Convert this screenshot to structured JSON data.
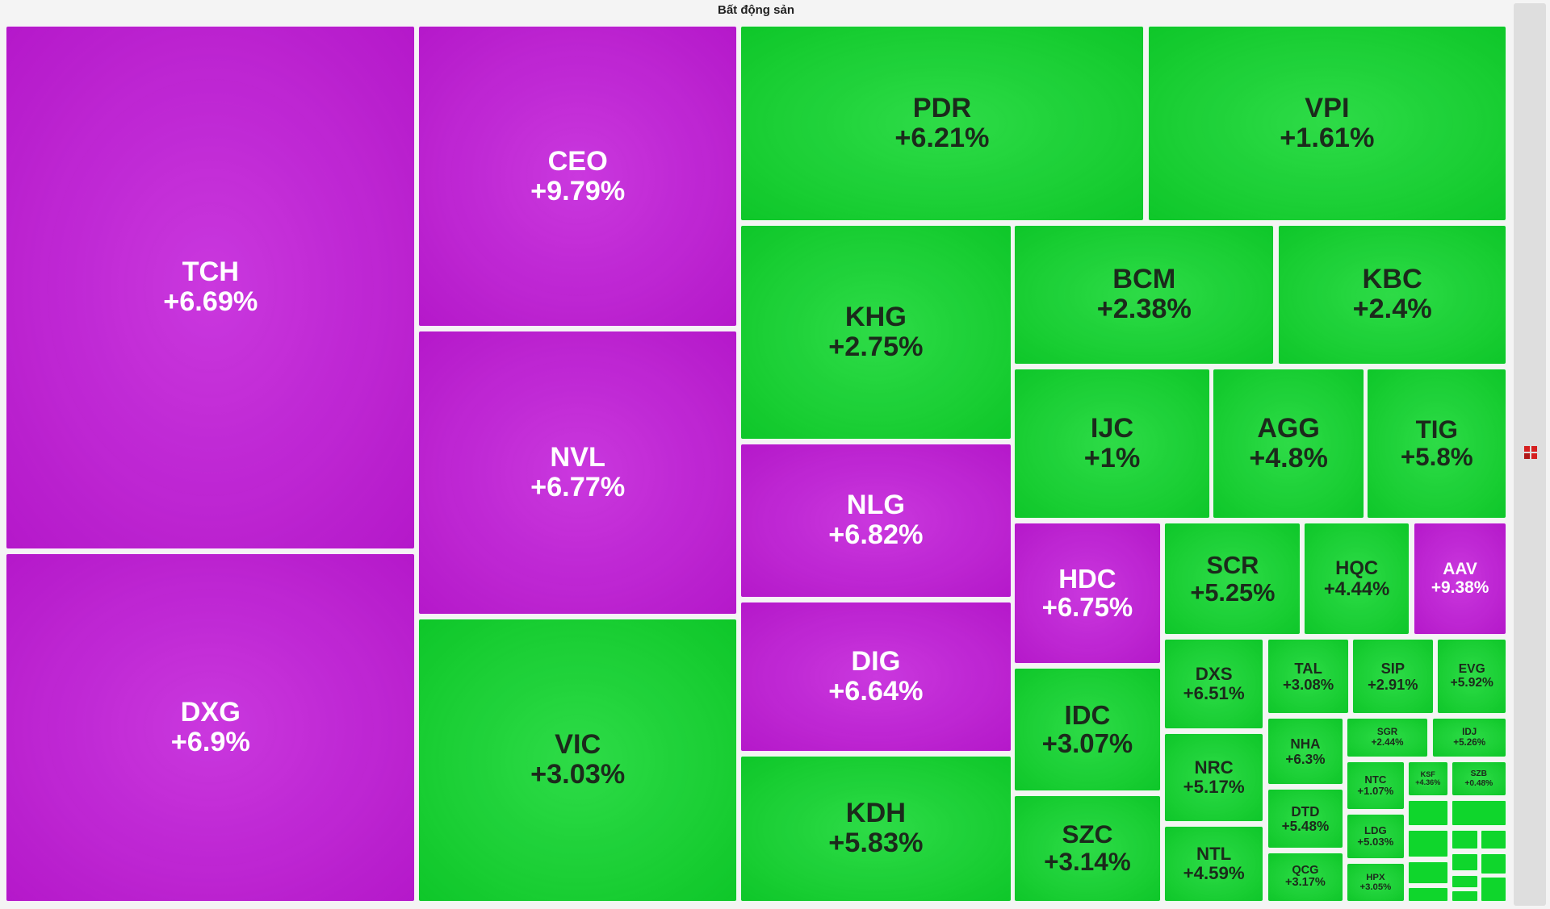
{
  "title": "Bất động sản",
  "tiles": [
    {
      "ticker": "TCH",
      "change": "+6.69%",
      "color": "#c21ad9"
    },
    {
      "ticker": "DXG",
      "change": "+6.9%",
      "color": "#c21ad9"
    },
    {
      "ticker": "CEO",
      "change": "+9.79%",
      "color": "#c21ad9"
    },
    {
      "ticker": "NVL",
      "change": "+6.77%",
      "color": "#c21ad9"
    },
    {
      "ticker": "VIC",
      "change": "+3.03%",
      "color": "#0fd62c"
    },
    {
      "ticker": "PDR",
      "change": "+6.21%",
      "color": "#0fd62c"
    },
    {
      "ticker": "VPI",
      "change": "+1.61%",
      "color": "#0fd62c"
    },
    {
      "ticker": "KHG",
      "change": "+2.75%",
      "color": "#0fd62c"
    },
    {
      "ticker": "NLG",
      "change": "+6.82%",
      "color": "#c21ad9"
    },
    {
      "ticker": "DIG",
      "change": "+6.64%",
      "color": "#c21ad9"
    },
    {
      "ticker": "KDH",
      "change": "+5.83%",
      "color": "#0fd62c"
    },
    {
      "ticker": "BCM",
      "change": "+2.38%",
      "color": "#0fd62c"
    },
    {
      "ticker": "KBC",
      "change": "+2.4%",
      "color": "#0fd62c"
    },
    {
      "ticker": "IJC",
      "change": "+1%",
      "color": "#0fd62c"
    },
    {
      "ticker": "AGG",
      "change": "+4.8%",
      "color": "#0fd62c"
    },
    {
      "ticker": "TIG",
      "change": "+5.8%",
      "color": "#0fd62c"
    },
    {
      "ticker": "HDC",
      "change": "+6.75%",
      "color": "#c21ad9"
    },
    {
      "ticker": "IDC",
      "change": "+3.07%",
      "color": "#0fd62c"
    },
    {
      "ticker": "SZC",
      "change": "+3.14%",
      "color": "#0fd62c"
    },
    {
      "ticker": "SCR",
      "change": "+5.25%",
      "color": "#0fd62c"
    },
    {
      "ticker": "HQC",
      "change": "+4.44%",
      "color": "#0fd62c"
    },
    {
      "ticker": "AAV",
      "change": "+9.38%",
      "color": "#c21ad9"
    },
    {
      "ticker": "DXS",
      "change": "+6.51%",
      "color": "#0fd62c"
    },
    {
      "ticker": "NRC",
      "change": "+5.17%",
      "color": "#0fd62c"
    },
    {
      "ticker": "NTL",
      "change": "+4.59%",
      "color": "#0fd62c"
    },
    {
      "ticker": "TAL",
      "change": "+3.08%",
      "color": "#0fd62c"
    },
    {
      "ticker": "SIP",
      "change": "+2.91%",
      "color": "#0fd62c"
    },
    {
      "ticker": "EVG",
      "change": "+5.92%",
      "color": "#0fd62c"
    },
    {
      "ticker": "NHA",
      "change": "+6.3%",
      "color": "#0fd62c"
    },
    {
      "ticker": "DTD",
      "change": "+5.48%",
      "color": "#0fd62c"
    },
    {
      "ticker": "QCG",
      "change": "+3.17%",
      "color": "#0fd62c"
    },
    {
      "ticker": "SGR",
      "change": "+2.44%",
      "color": "#0fd62c"
    },
    {
      "ticker": "IDJ",
      "change": "+5.26%",
      "color": "#0fd62c"
    },
    {
      "ticker": "NTC",
      "change": "+1.07%",
      "color": "#0fd62c"
    },
    {
      "ticker": "KSF",
      "change": "+4.36%",
      "color": "#0fd62c"
    },
    {
      "ticker": "SZB",
      "change": "+0.48%",
      "color": "#0fd62c"
    },
    {
      "ticker": "LDG",
      "change": "+5.03%",
      "color": "#0fd62c"
    },
    {
      "ticker": "HPX",
      "change": "+3.05%",
      "color": "#0fd62c"
    }
  ]
}
